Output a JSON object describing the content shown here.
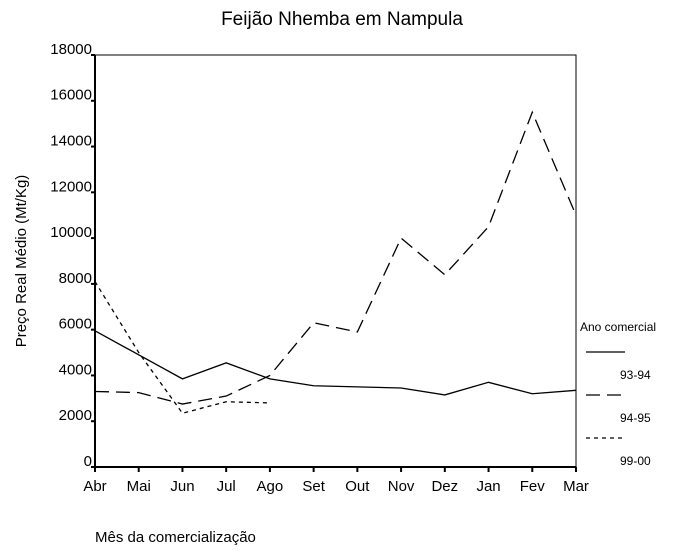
{
  "chart_data": {
    "type": "line",
    "title": "Feijão Nhemba em Nampula",
    "x_label": "Mês da comercialização",
    "y_label": "Preço Real Médio (Mt/Kg)",
    "legend_title": "Ano comercial",
    "legend": "right",
    "categories": [
      "Abr",
      "Mai",
      "Jun",
      "Jul",
      "Ago",
      "Set",
      "Out",
      "Nov",
      "Dez",
      "Jan",
      "Fev",
      "Mar"
    ],
    "series": [
      {
        "name": "93-94",
        "color": "#000000",
        "style": "solid",
        "values": [
          5950,
          4900,
          3850,
          4550,
          3850,
          3550,
          3500,
          3450,
          3150,
          3700,
          3200,
          3350
        ]
      },
      {
        "name": "94-95",
        "color": "#000000",
        "style": "dashed",
        "values": [
          3300,
          3250,
          2750,
          3100,
          4000,
          6300,
          5900,
          10000,
          8400,
          10500,
          15500,
          11000
        ]
      },
      {
        "name": "99-00",
        "color": "#000000",
        "style": "dotted",
        "values": [
          8100,
          5000,
          2350,
          2850,
          2800,
          null,
          null,
          null,
          null,
          null,
          null,
          null
        ]
      }
    ],
    "ylim": [
      0,
      18000
    ],
    "yticks": [
      0,
      2000,
      4000,
      6000,
      8000,
      10000,
      12000,
      14000,
      16000,
      18000
    ]
  }
}
